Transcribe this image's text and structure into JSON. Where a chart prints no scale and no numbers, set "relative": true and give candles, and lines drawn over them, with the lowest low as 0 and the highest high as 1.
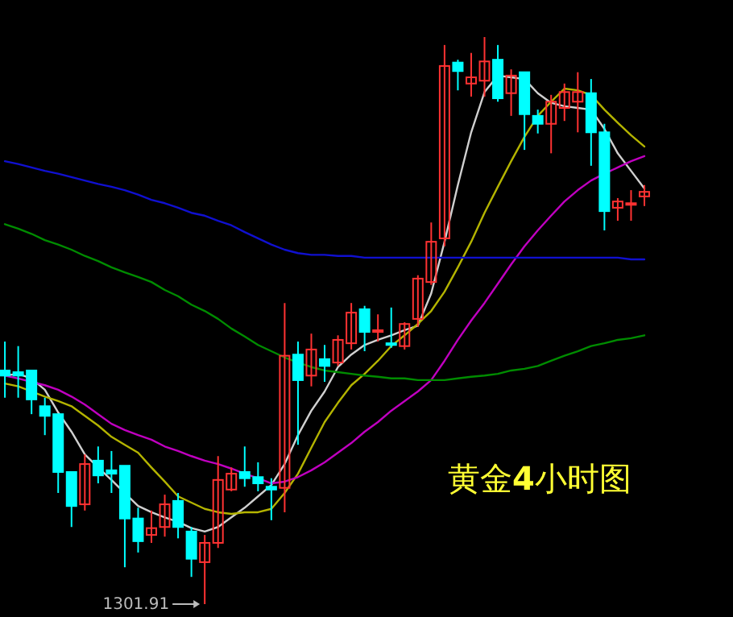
{
  "chart_data": {
    "type": "candlestick",
    "title": "黄金**4**小时图",
    "relative": true,
    "annotations": [
      "1301.91"
    ],
    "categories": [
      null,
      null,
      null,
      null,
      null,
      null,
      null,
      null,
      null,
      null,
      null,
      null,
      null,
      null,
      null,
      null,
      null,
      null,
      null,
      null,
      null,
      null,
      null,
      null,
      null,
      null,
      null,
      null,
      null,
      null,
      null,
      null,
      null,
      null,
      null,
      null,
      null,
      null,
      null,
      null,
      null,
      null,
      null,
      null,
      null,
      null,
      null,
      null,
      null
    ],
    "ohlc": [
      [
        0.412,
        0.463,
        0.364,
        0.403
      ],
      [
        0.409,
        0.455,
        0.364,
        0.403
      ],
      [
        0.412,
        0.412,
        0.335,
        0.361
      ],
      [
        0.349,
        0.364,
        0.298,
        0.332
      ],
      [
        0.335,
        0.335,
        0.196,
        0.233
      ],
      [
        0.233,
        0.233,
        0.136,
        0.173
      ],
      [
        0.176,
        0.264,
        0.165,
        0.247
      ],
      [
        0.253,
        0.278,
        0.213,
        0.227
      ],
      [
        0.236,
        0.27,
        0.196,
        0.23
      ],
      [
        0.244,
        0.244,
        0.065,
        0.151
      ],
      [
        0.151,
        0.17,
        0.091,
        0.111
      ],
      [
        0.122,
        0.165,
        0.108,
        0.134
      ],
      [
        0.136,
        0.193,
        0.119,
        0.176
      ],
      [
        0.182,
        0.196,
        0.116,
        0.136
      ],
      [
        0.128,
        0.136,
        0.048,
        0.08
      ],
      [
        0.074,
        0.122,
        0,
        0.108
      ],
      [
        0.108,
        0.261,
        0.099,
        0.219
      ],
      [
        0.202,
        0.241,
        0.199,
        0.23
      ],
      [
        0.233,
        0.278,
        0.207,
        0.222
      ],
      [
        0.224,
        0.25,
        0.199,
        0.213
      ],
      [
        0.207,
        0.222,
        0.148,
        0.202
      ],
      [
        0.205,
        0.531,
        0.162,
        0.438
      ],
      [
        0.44,
        0.463,
        0.281,
        0.395
      ],
      [
        0.403,
        0.477,
        0.384,
        0.449
      ],
      [
        0.432,
        0.457,
        0.392,
        0.42
      ],
      [
        0.426,
        0.474,
        0.42,
        0.466
      ],
      [
        0.46,
        0.531,
        0.449,
        0.514
      ],
      [
        0.52,
        0.526,
        0.446,
        0.48
      ],
      [
        0.48,
        0.511,
        0.463,
        0.483
      ],
      [
        0.46,
        0.523,
        0.452,
        0.457
      ],
      [
        0.455,
        0.497,
        0.449,
        0.494
      ],
      [
        0.503,
        0.58,
        0.489,
        0.574
      ],
      [
        0.568,
        0.673,
        0.563,
        0.639
      ],
      [
        0.645,
        0.986,
        0.631,
        0.949
      ],
      [
        0.955,
        0.96,
        0.906,
        0.94
      ],
      [
        0.918,
        0.972,
        0.895,
        0.929
      ],
      [
        0.923,
        1,
        0.895,
        0.957
      ],
      [
        0.96,
        0.986,
        0.886,
        0.892
      ],
      [
        0.901,
        0.943,
        0.861,
        0.932
      ],
      [
        0.938,
        0.938,
        0.801,
        0.864
      ],
      [
        0.861,
        0.872,
        0.83,
        0.847
      ],
      [
        0.847,
        0.898,
        0.795,
        0.886
      ],
      [
        0.875,
        0.918,
        0.852,
        0.903
      ],
      [
        0.886,
        0.938,
        0.832,
        0.903
      ],
      [
        0.901,
        0.926,
        0.773,
        0.832
      ],
      [
        0.832,
        0.847,
        0.659,
        0.693
      ],
      [
        0.699,
        0.716,
        0.676,
        0.71
      ],
      [
        0.705,
        0.73,
        0.676,
        0.707
      ],
      [
        0.719,
        0.739,
        0.702,
        0.727
      ]
    ],
    "colors": [
      "#00ffff",
      "#00ffff",
      "#00ffff",
      "#00ffff",
      "#00ffff",
      "#00ffff",
      "#ff3232",
      "#00ffff",
      "#00ffff",
      "#00ffff",
      "#00ffff",
      "#ff3232",
      "#ff3232",
      "#00ffff",
      "#00ffff",
      "#ff3232",
      "#ff3232",
      "#ff3232",
      "#00ffff",
      "#00ffff",
      "#00ffff",
      "#ff3232",
      "#00ffff",
      "#ff3232",
      "#00ffff",
      "#ff3232",
      "#ff3232",
      "#00ffff",
      "#ff3232",
      "#00ffff",
      "#ff3232",
      "#ff3232",
      "#ff3232",
      "#ff3232",
      "#00ffff",
      "#ff3232",
      "#ff3232",
      "#00ffff",
      "#ff3232",
      "#00ffff",
      "#00ffff",
      "#ff3232",
      "#ff3232",
      "#ff3232",
      "#00ffff",
      "#00ffff",
      "#ff3232",
      "#ff3232",
      "#ff3232"
    ],
    "series": [
      {
        "type": "line",
        "color": "#d0d0d0",
        "values": [
          0.403,
          0.406,
          0.398,
          0.378,
          0.338,
          0.304,
          0.264,
          0.241,
          0.219,
          0.196,
          0.173,
          0.162,
          0.153,
          0.145,
          0.134,
          0.128,
          0.136,
          0.153,
          0.17,
          0.19,
          0.21,
          0.247,
          0.298,
          0.341,
          0.375,
          0.418,
          0.44,
          0.457,
          0.466,
          0.474,
          0.483,
          0.491,
          0.548,
          0.639,
          0.739,
          0.832,
          0.903,
          0.932,
          0.929,
          0.926,
          0.901,
          0.884,
          0.878,
          0.875,
          0.872,
          0.838,
          0.795,
          0.764,
          0.733
        ]
      },
      {
        "type": "line",
        "color": "#b4b400",
        "values": [
          0.389,
          0.384,
          0.375,
          0.366,
          0.358,
          0.349,
          0.332,
          0.315,
          0.295,
          0.281,
          0.267,
          0.241,
          0.216,
          0.19,
          0.179,
          0.168,
          0.162,
          0.159,
          0.162,
          0.162,
          0.168,
          0.196,
          0.23,
          0.276,
          0.321,
          0.355,
          0.386,
          0.406,
          0.429,
          0.455,
          0.474,
          0.494,
          0.517,
          0.551,
          0.594,
          0.639,
          0.69,
          0.736,
          0.781,
          0.824,
          0.861,
          0.886,
          0.909,
          0.906,
          0.898,
          0.872,
          0.849,
          0.827,
          0.807
        ]
      },
      {
        "type": "line",
        "color": "#c000c0",
        "values": [
          0.403,
          0.398,
          0.392,
          0.386,
          0.378,
          0.366,
          0.352,
          0.335,
          0.318,
          0.307,
          0.298,
          0.29,
          0.278,
          0.27,
          0.261,
          0.253,
          0.247,
          0.239,
          0.23,
          0.222,
          0.213,
          0.216,
          0.224,
          0.236,
          0.25,
          0.267,
          0.284,
          0.304,
          0.321,
          0.341,
          0.358,
          0.375,
          0.395,
          0.429,
          0.466,
          0.5,
          0.531,
          0.565,
          0.599,
          0.631,
          0.659,
          0.685,
          0.71,
          0.73,
          0.747,
          0.759,
          0.77,
          0.781,
          0.79
        ]
      },
      {
        "type": "line",
        "color": "#008c00",
        "values": [
          0.67,
          0.662,
          0.653,
          0.642,
          0.634,
          0.625,
          0.614,
          0.605,
          0.594,
          0.585,
          0.577,
          0.568,
          0.554,
          0.543,
          0.528,
          0.517,
          0.503,
          0.486,
          0.472,
          0.457,
          0.446,
          0.435,
          0.426,
          0.418,
          0.412,
          0.409,
          0.406,
          0.403,
          0.401,
          0.398,
          0.398,
          0.395,
          0.395,
          0.395,
          0.398,
          0.401,
          0.403,
          0.406,
          0.412,
          0.415,
          0.42,
          0.429,
          0.438,
          0.446,
          0.455,
          0.46,
          0.466,
          0.469,
          0.474
        ]
      },
      {
        "type": "line",
        "color": "#1010d0",
        "values": [
          0.781,
          0.776,
          0.77,
          0.764,
          0.759,
          0.753,
          0.747,
          0.741,
          0.736,
          0.73,
          0.722,
          0.713,
          0.707,
          0.699,
          0.69,
          0.685,
          0.676,
          0.668,
          0.656,
          0.645,
          0.634,
          0.625,
          0.619,
          0.616,
          0.616,
          0.614,
          0.614,
          0.611,
          0.611,
          0.611,
          0.611,
          0.611,
          0.611,
          0.611,
          0.611,
          0.611,
          0.611,
          0.611,
          0.611,
          0.611,
          0.611,
          0.611,
          0.611,
          0.611,
          0.611,
          0.611,
          0.611,
          0.608,
          0.608
        ]
      }
    ]
  }
}
